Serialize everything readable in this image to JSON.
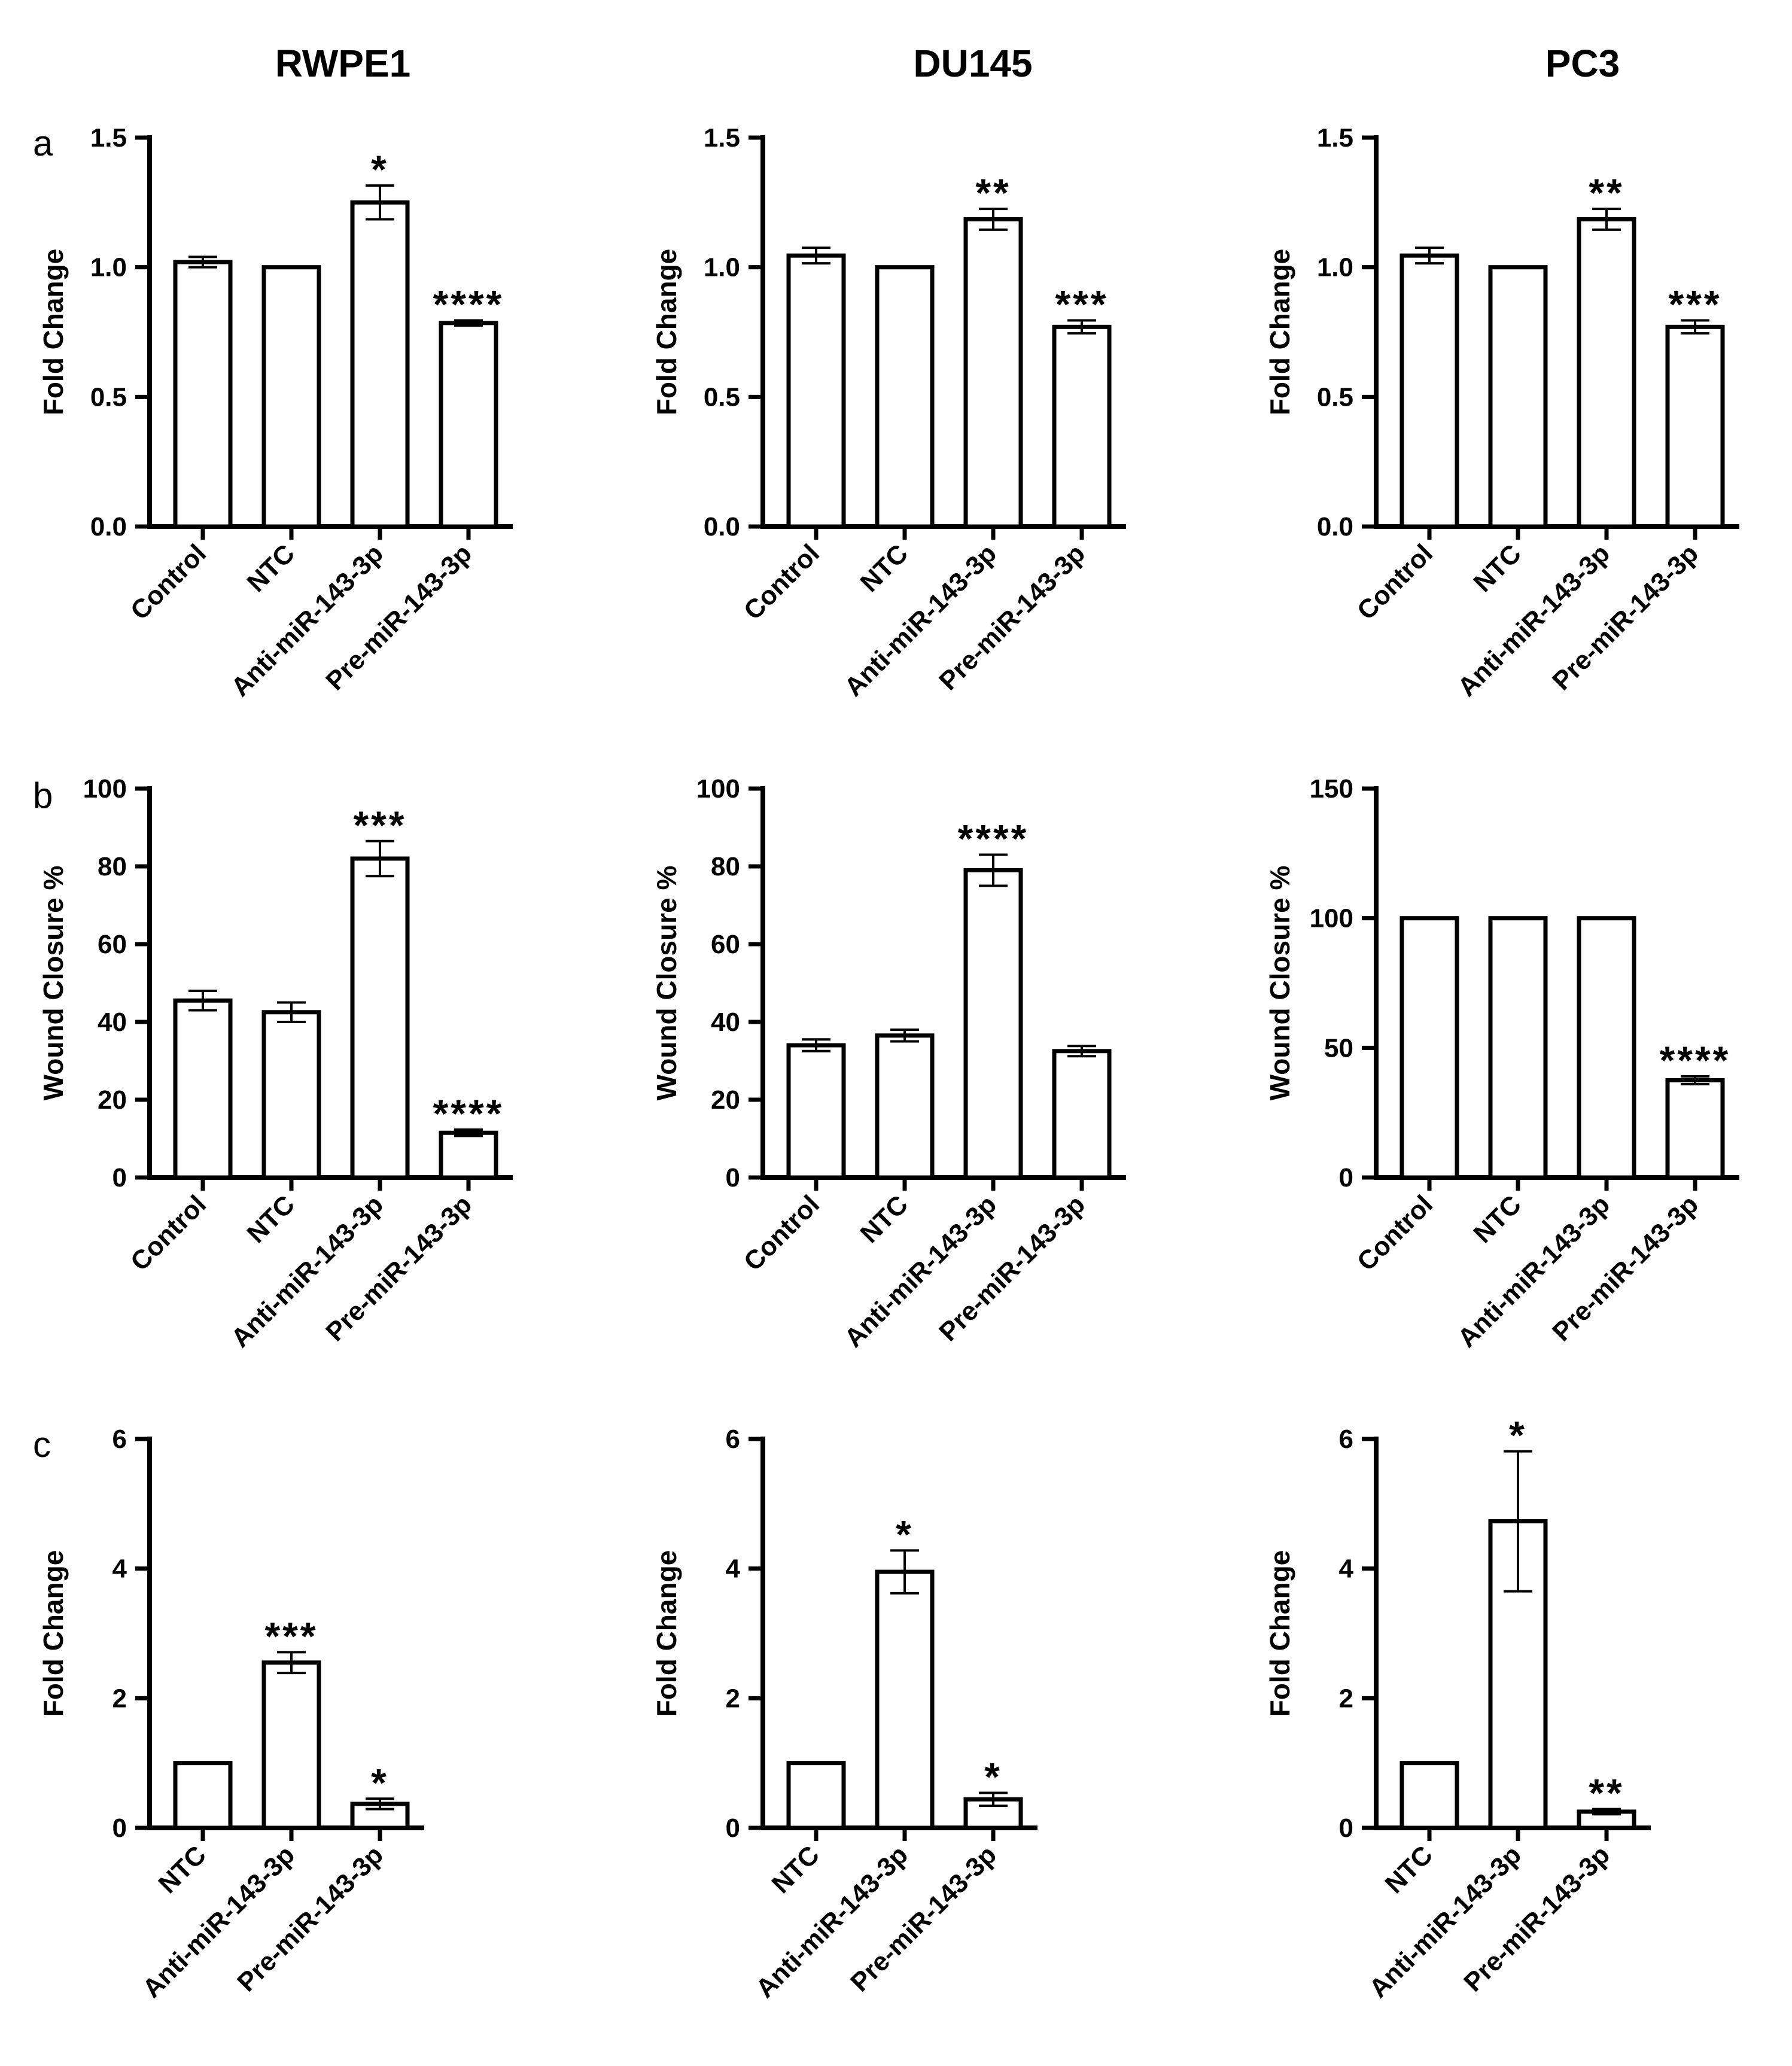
{
  "figure": {
    "column_titles": [
      "RWPE1",
      "DU145",
      "PC3"
    ],
    "row_labels": [
      "a",
      "b",
      "c"
    ]
  },
  "chart_data": [
    {
      "id": "a-rwpe1",
      "row": "a",
      "cell_line": "RWPE1",
      "type": "bar",
      "ylabel": "Fold Change",
      "ylim": [
        0,
        1.5
      ],
      "yticks": [
        "0.0",
        "0.5",
        "1.0",
        "1.5"
      ],
      "tick_values": [
        0,
        0.5,
        1.0,
        1.5
      ],
      "categories": [
        "Control",
        "NTC",
        "Anti-miR-143-3p",
        "Pre-miR-143-3p"
      ],
      "values": [
        1.02,
        1.0,
        1.25,
        0.785
      ],
      "errors": [
        0.02,
        0,
        0.065,
        0.01
      ],
      "significance": [
        "",
        "",
        "*",
        "****"
      ]
    },
    {
      "id": "a-du145",
      "row": "a",
      "cell_line": "DU145",
      "type": "bar",
      "ylabel": "Fold Change",
      "ylim": [
        0,
        1.5
      ],
      "yticks": [
        "0.0",
        "0.5",
        "1.0",
        "1.5"
      ],
      "tick_values": [
        0,
        0.5,
        1.0,
        1.5
      ],
      "categories": [
        "Control",
        "NTC",
        "Anti-miR-143-3p",
        "Pre-miR-143-3p"
      ],
      "values": [
        1.045,
        1.0,
        1.185,
        0.77
      ],
      "errors": [
        0.03,
        0,
        0.04,
        0.025
      ],
      "significance": [
        "",
        "",
        "**",
        "***"
      ]
    },
    {
      "id": "a-pc3",
      "row": "a",
      "cell_line": "PC3",
      "type": "bar",
      "ylabel": "Fold Change",
      "ylim": [
        0,
        1.5
      ],
      "yticks": [
        "0.0",
        "0.5",
        "1.0",
        "1.5"
      ],
      "tick_values": [
        0,
        0.5,
        1.0,
        1.5
      ],
      "categories": [
        "Control",
        "NTC",
        "Anti-miR-143-3p",
        "Pre-miR-143-3p"
      ],
      "values": [
        1.045,
        1.0,
        1.185,
        0.77
      ],
      "errors": [
        0.03,
        0,
        0.04,
        0.025
      ],
      "significance": [
        "",
        "",
        "**",
        "***"
      ]
    },
    {
      "id": "b-rwpe1",
      "row": "b",
      "cell_line": "RWPE1",
      "type": "bar",
      "ylabel": "Wound Closure %",
      "ylim": [
        0,
        100
      ],
      "yticks": [
        "0",
        "20",
        "40",
        "60",
        "80",
        "100"
      ],
      "tick_values": [
        0,
        20,
        40,
        60,
        80,
        100
      ],
      "categories": [
        "Control",
        "NTC",
        "Anti-miR-143-3p",
        "Pre-miR-143-3p"
      ],
      "values": [
        45.5,
        42.5,
        82,
        11.5
      ],
      "errors": [
        2.5,
        2.5,
        4.5,
        0.8
      ],
      "significance": [
        "",
        "",
        "***",
        "****"
      ]
    },
    {
      "id": "b-du145",
      "row": "b",
      "cell_line": "DU145",
      "type": "bar",
      "ylabel": "Wound Closure %",
      "ylim": [
        0,
        100
      ],
      "yticks": [
        "0",
        "20",
        "40",
        "60",
        "80",
        "100"
      ],
      "tick_values": [
        0,
        20,
        40,
        60,
        80,
        100
      ],
      "categories": [
        "Control",
        "NTC",
        "Anti-miR-143-3p",
        "Pre-miR-143-3p"
      ],
      "values": [
        34,
        36.5,
        79,
        32.5
      ],
      "errors": [
        1.5,
        1.5,
        4,
        1.3
      ],
      "significance": [
        "",
        "",
        "****",
        ""
      ]
    },
    {
      "id": "b-pc3",
      "row": "b",
      "cell_line": "PC3",
      "type": "bar",
      "ylabel": "Wound Closure %",
      "ylim": [
        0,
        150
      ],
      "yticks": [
        "0",
        "50",
        "100",
        "150"
      ],
      "tick_values": [
        0,
        50,
        100,
        150
      ],
      "categories": [
        "Control",
        "NTC",
        "Anti-miR-143-3p",
        "Pre-miR-143-3p"
      ],
      "values": [
        100,
        100,
        100,
        37.5
      ],
      "errors": [
        0,
        0,
        0,
        1.5
      ],
      "significance": [
        "",
        "",
        "",
        "****"
      ]
    },
    {
      "id": "c-rwpe1",
      "row": "c",
      "cell_line": "RWPE1",
      "type": "bar",
      "ylabel": "Fold Change",
      "ylim": [
        0,
        6
      ],
      "yticks": [
        "0",
        "2",
        "4",
        "6"
      ],
      "tick_values": [
        0,
        2,
        4,
        6
      ],
      "categories": [
        "NTC",
        "Anti-miR-143-3p",
        "Pre-miR-143-3p"
      ],
      "values": [
        1.0,
        2.55,
        0.37
      ],
      "errors": [
        0,
        0.16,
        0.08
      ],
      "significance": [
        "",
        "***",
        "*"
      ]
    },
    {
      "id": "c-du145",
      "row": "c",
      "cell_line": "DU145",
      "type": "bar",
      "ylabel": "Fold Change",
      "ylim": [
        0,
        6
      ],
      "yticks": [
        "0",
        "2",
        "4",
        "6"
      ],
      "tick_values": [
        0,
        2,
        4,
        6
      ],
      "categories": [
        "NTC",
        "Anti-miR-143-3p",
        "Pre-miR-143-3p"
      ],
      "values": [
        1.0,
        3.95,
        0.44
      ],
      "errors": [
        0,
        0.33,
        0.1
      ],
      "significance": [
        "",
        "*",
        "*"
      ]
    },
    {
      "id": "c-pc3",
      "row": "c",
      "cell_line": "PC3",
      "type": "bar",
      "ylabel": "Fold Change",
      "ylim": [
        0,
        6
      ],
      "yticks": [
        "0",
        "2",
        "4",
        "6"
      ],
      "tick_values": [
        0,
        2,
        4,
        6
      ],
      "categories": [
        "NTC",
        "Anti-miR-143-3p",
        "Pre-miR-143-3p"
      ],
      "values": [
        1.0,
        4.73,
        0.25
      ],
      "errors": [
        0,
        1.08,
        0.04
      ],
      "significance": [
        "",
        "*",
        "**"
      ]
    }
  ]
}
